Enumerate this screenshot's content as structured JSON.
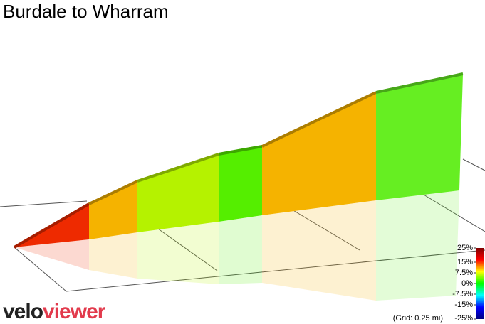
{
  "chart_data": {
    "type": "profile3d",
    "title": "Burdale to Wharram",
    "segments": [
      {
        "gradient": 17,
        "color": "#ee2a00"
      },
      {
        "gradient": 11,
        "color": "#f5b300"
      },
      {
        "gradient": 5,
        "color": "#b5f200"
      },
      {
        "gradient": 2,
        "color": "#55ee00"
      },
      {
        "gradient": 11,
        "color": "#f5b300"
      },
      {
        "gradient": 2,
        "color": "#66ee22"
      }
    ],
    "colorbar": {
      "lim": [
        -25,
        25
      ],
      "ticks": [
        {
          "value": 25,
          "label": "25%"
        },
        {
          "value": 15,
          "label": "15%"
        },
        {
          "value": 7.5,
          "label": "7.5%"
        },
        {
          "value": 0,
          "label": "0%"
        },
        {
          "value": -7.5,
          "label": "-7.5%"
        },
        {
          "value": -15,
          "label": "-15%"
        },
        {
          "value": -25,
          "label": "-25%"
        }
      ],
      "colors": [
        "#000080",
        "#0000ff",
        "#00ffff",
        "#00ff00",
        "#ffff00",
        "#ff0000",
        "#800000"
      ]
    },
    "grid_label": "(Grid: 0.25 mi)"
  },
  "logo": {
    "part1": "velo",
    "part2": "viewer"
  }
}
